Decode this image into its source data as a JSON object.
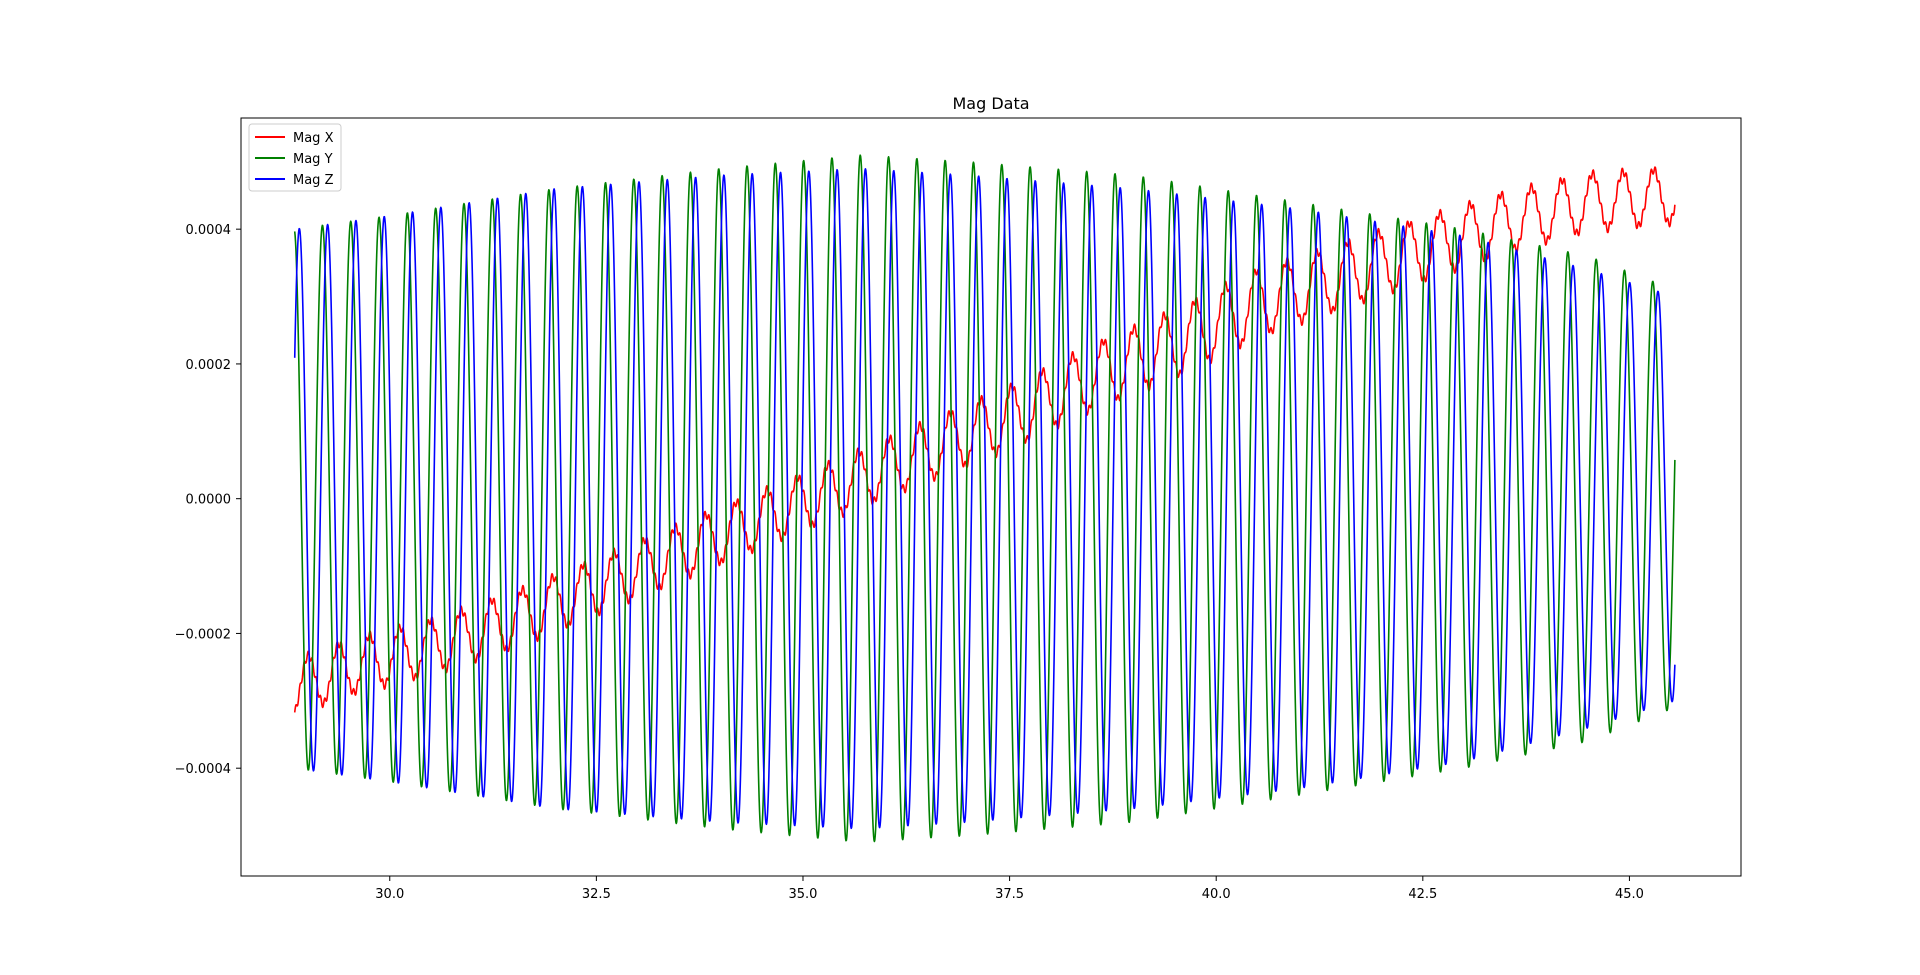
{
  "chart_data": {
    "type": "line",
    "title": "Mag Data",
    "xlabel": "",
    "ylabel": "",
    "xlim": [
      28.2,
      46.35
    ],
    "ylim": [
      -0.00056,
      0.000565
    ],
    "x_ticks": [
      30.0,
      32.5,
      35.0,
      37.5,
      40.0,
      42.5,
      45.0
    ],
    "x_tick_labels": [
      "30.0",
      "32.5",
      "35.0",
      "37.5",
      "40.0",
      "42.5",
      "45.0"
    ],
    "y_ticks": [
      0.0004,
      0.0002,
      0.0,
      -0.0002,
      -0.0004
    ],
    "y_tick_labels": [
      "0.0004",
      "0.0002",
      "0.0000",
      "−0.0002",
      "−0.0004"
    ],
    "grid": false,
    "legend_position": "upper-left",
    "x_range": [
      28.85,
      45.55
    ],
    "series": [
      {
        "name": "Mag X",
        "color": "#ff0000",
        "values": [
          [
            28.85,
            -0.00028
          ],
          [
            29.5,
            -0.00025
          ],
          [
            30.5,
            -0.00022
          ],
          [
            31.5,
            -0.00018
          ],
          [
            32.5,
            -0.00013
          ],
          [
            33.5,
            -8e-05
          ],
          [
            34.5,
            -3e-05
          ],
          [
            35.5,
            2e-05
          ],
          [
            36.5,
            7e-05
          ],
          [
            37.5,
            0.00012
          ],
          [
            38.5,
            0.00018
          ],
          [
            39.5,
            0.00023
          ],
          [
            40.5,
            0.00029
          ],
          [
            41.5,
            0.00033
          ],
          [
            42.5,
            0.00037
          ],
          [
            43.5,
            0.00041
          ],
          [
            44.5,
            0.00044
          ],
          [
            45.55,
            0.00045
          ]
        ],
        "oscillation_amplitude": [
          [
            28.85,
            4e-05
          ],
          [
            35.0,
            4e-05
          ],
          [
            40.0,
            5e-05
          ],
          [
            45.55,
            4e-05
          ]
        ],
        "oscillation_period": 0.37
      },
      {
        "name": "Mag Y",
        "color": "#008000",
        "values": [
          [
            28.85,
            0.0
          ]
        ],
        "oscillation_amplitude": [
          [
            28.85,
            0.0004
          ],
          [
            30.0,
            0.00042
          ],
          [
            32.0,
            0.00046
          ],
          [
            34.0,
            0.00049
          ],
          [
            35.7,
            0.00051
          ],
          [
            37.0,
            0.0005
          ],
          [
            39.0,
            0.00048
          ],
          [
            41.0,
            0.00044
          ],
          [
            43.0,
            0.0004
          ],
          [
            44.5,
            0.00036
          ],
          [
            45.55,
            0.00031
          ]
        ],
        "oscillation_period": 0.3425
      },
      {
        "name": "Mag Z",
        "color": "#0000ff",
        "values": [
          [
            28.85,
            0.0
          ]
        ],
        "oscillation_amplitude": [
          [
            28.85,
            0.0004
          ],
          [
            30.0,
            0.00042
          ],
          [
            32.0,
            0.00046
          ],
          [
            34.0,
            0.00048
          ],
          [
            35.7,
            0.00049
          ],
          [
            37.0,
            0.00048
          ],
          [
            39.0,
            0.00046
          ],
          [
            41.0,
            0.00043
          ],
          [
            43.0,
            0.00039
          ],
          [
            44.5,
            0.00034
          ],
          [
            45.55,
            0.0003
          ]
        ],
        "oscillation_period": 0.3425
      }
    ]
  }
}
